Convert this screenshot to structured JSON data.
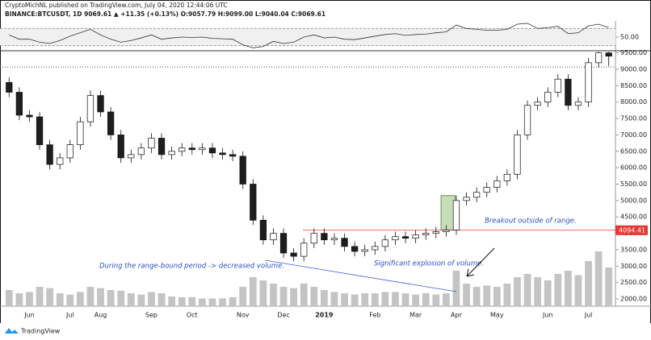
{
  "chart_data": {
    "type": "candlestick",
    "title": "CryptoMichNL published on TradingView.com, July 04, 2020 12:44:06 UTC",
    "subtitle": "BINANCE:BTCUSDT, 1D 9069.61 ▲ +11.35 (+0.13%) O:9057.79 H:9099.00 L:9040.04 C:9069.61",
    "source": "TradingView",
    "categories": [
      null,
      null,
      "Jun",
      null,
      null,
      null,
      "Jul",
      null,
      null,
      "Aug",
      null,
      null,
      null,
      null,
      "Sep",
      null,
      null,
      null,
      "Oct",
      null,
      null,
      null,
      null,
      "Nov",
      null,
      null,
      null,
      "Dec",
      null,
      null,
      null,
      "2019",
      null,
      null,
      null,
      null,
      "Feb",
      null,
      null,
      null,
      "Mar",
      null,
      null,
      null,
      "Apr",
      null,
      null,
      null,
      "May",
      null,
      null,
      null,
      null,
      "Jun",
      null,
      null,
      null,
      "Jul",
      null,
      null
    ],
    "open": [
      8600,
      8300,
      7600,
      7550,
      6700,
      6100,
      6300,
      6700,
      7400,
      8200,
      7700,
      7000,
      6300,
      6400,
      6600,
      6900,
      6400,
      6500,
      6600,
      6550,
      6600,
      6450,
      6400,
      6350,
      5500,
      4400,
      3800,
      4000,
      3400,
      3300,
      3700,
      4000,
      3800,
      3850,
      3600,
      3450,
      3500,
      3600,
      3800,
      3900,
      3850,
      3950,
      4000,
      4050,
      4100,
      5000,
      5100,
      5250,
      5400,
      5600,
      5800,
      7000,
      7900,
      8000,
      8300,
      8700,
      7900,
      8000,
      9200,
      9500
    ],
    "high": [
      8750,
      8450,
      7750,
      7700,
      6850,
      6450,
      6850,
      7550,
      8350,
      8350,
      7850,
      7150,
      6550,
      6750,
      7050,
      7050,
      6650,
      6750,
      6750,
      6750,
      6750,
      6600,
      6550,
      6500,
      5650,
      4550,
      4150,
      4150,
      3550,
      3850,
      4150,
      4150,
      4000,
      4000,
      3750,
      3650,
      3750,
      3950,
      4050,
      4050,
      4100,
      4150,
      4200,
      4250,
      5150,
      5250,
      5400,
      5550,
      5750,
      5950,
      7150,
      8050,
      8150,
      8450,
      8850,
      8850,
      8150,
      9350,
      9530,
      9530
    ],
    "low": [
      8150,
      7450,
      7400,
      6550,
      5950,
      5950,
      6150,
      6550,
      7250,
      7550,
      6850,
      6150,
      6150,
      6250,
      6450,
      6250,
      6250,
      6350,
      6400,
      6400,
      6300,
      6250,
      6200,
      5350,
      4250,
      3650,
      3650,
      3250,
      3150,
      3150,
      3550,
      3650,
      3650,
      3450,
      3300,
      3300,
      3350,
      3450,
      3650,
      3700,
      3700,
      3800,
      3850,
      3900,
      3950,
      4850,
      4950,
      5100,
      5250,
      5450,
      5650,
      6850,
      7750,
      7850,
      8150,
      7750,
      7750,
      7850,
      9050,
      9100
    ],
    "close": [
      8300,
      7600,
      7550,
      6700,
      6100,
      6300,
      6700,
      7400,
      8200,
      7700,
      7000,
      6300,
      6400,
      6600,
      6900,
      6400,
      6500,
      6600,
      6550,
      6600,
      6450,
      6400,
      6350,
      5500,
      4400,
      3800,
      4000,
      3400,
      3300,
      3700,
      4000,
      3800,
      3850,
      3600,
      3450,
      3500,
      3600,
      3800,
      3900,
      3850,
      3950,
      4000,
      4050,
      4100,
      5000,
      5100,
      5250,
      5400,
      5600,
      5800,
      7000,
      7900,
      8000,
      8300,
      8700,
      7900,
      8000,
      9200,
      9500,
      9400
    ],
    "up_color": "#ffffff",
    "down_color": "#1e1e1e",
    "ylim": [
      1780,
      9540
    ],
    "yticks": [
      {
        "value": 2000,
        "label": "2000.00"
      },
      {
        "value": 2500,
        "label": "2500.00"
      },
      {
        "value": 3000,
        "label": "3000.00"
      },
      {
        "value": 3500,
        "label": "3500.00"
      },
      {
        "value": 4000,
        "label": "4000.00"
      },
      {
        "value": 4500,
        "label": "4500.00"
      },
      {
        "value": 5000,
        "label": "5000.00"
      },
      {
        "value": 5500,
        "label": "5500.00"
      },
      {
        "value": 6000,
        "label": "6000.00"
      },
      {
        "value": 6500,
        "label": "6500.00"
      },
      {
        "value": 7000,
        "label": "7000.00"
      },
      {
        "value": 7500,
        "label": "7500.00"
      },
      {
        "value": 8000,
        "label": "8000.00"
      },
      {
        "value": 8500,
        "label": "8500.00"
      },
      {
        "value": 9000,
        "label": "9000.00"
      },
      {
        "value": 9500,
        "label": "9500.00"
      }
    ],
    "price_line": 9069.61,
    "range_line": 4094.41,
    "range_line_color": "#e53935",
    "highlight_range": [
      4100,
      5150
    ],
    "highlight_color": "#b9d3a8",
    "volume": {
      "color": "#c4c4c4",
      "ylim": [
        0,
        100
      ],
      "values": [
        25,
        20,
        22,
        30,
        28,
        20,
        18,
        22,
        30,
        28,
        25,
        24,
        20,
        18,
        22,
        20,
        15,
        14,
        14,
        12,
        12,
        12,
        14,
        30,
        45,
        40,
        35,
        30,
        28,
        35,
        30,
        25,
        22,
        20,
        18,
        20,
        20,
        22,
        22,
        20,
        18,
        20,
        18,
        20,
        55,
        35,
        30,
        32,
        30,
        35,
        45,
        50,
        45,
        40,
        50,
        55,
        48,
        70,
        85,
        60
      ]
    },
    "rsi": {
      "color": "#333333",
      "ylim": [
        20,
        80
      ],
      "yticks": [
        {
          "value": 50,
          "label": "50.00"
        }
      ],
      "values": [
        55,
        45,
        45,
        38,
        35,
        42,
        52,
        60,
        68,
        55,
        45,
        38,
        42,
        48,
        55,
        45,
        48,
        50,
        49,
        50,
        47,
        46,
        45,
        32,
        25,
        28,
        40,
        35,
        38,
        50,
        55,
        48,
        50,
        45,
        44,
        48,
        52,
        56,
        58,
        54,
        56,
        57,
        60,
        62,
        78,
        70,
        68,
        66,
        66,
        68,
        80,
        82,
        70,
        72,
        75,
        58,
        60,
        76,
        80,
        72
      ]
    },
    "annotations": [
      "Breakout outside of range.",
      "During the range-bound period -> decreased volume.",
      "Significant explosion of volume."
    ],
    "annotation_color": "#2a52be"
  }
}
